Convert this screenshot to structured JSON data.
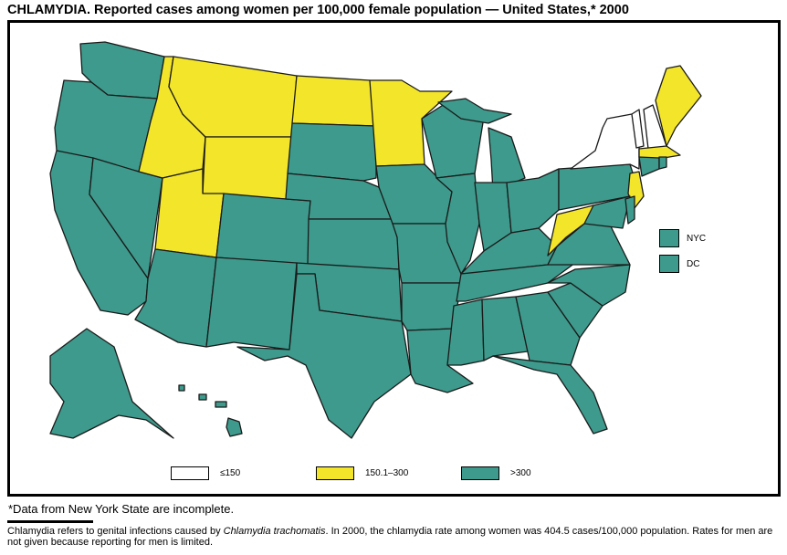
{
  "title": "CHLAMYDIA. Reported cases among women per 100,000 female population — United States,* 2000",
  "colors": {
    "low": "#ffffff",
    "mid": "#f3e52a",
    "high": "#3d9a8c",
    "outline": "#1a1a1a"
  },
  "legend": [
    {
      "key": "low",
      "label": "≤150"
    },
    {
      "key": "mid",
      "label": "150.1–300"
    },
    {
      "key": "high",
      "label": ">300"
    }
  ],
  "insets": [
    {
      "label": "NYC",
      "category": "high"
    },
    {
      "label": "DC",
      "category": "high"
    }
  ],
  "states": {
    "WA": "high",
    "OR": "high",
    "CA": "high",
    "NV": "high",
    "ID": "mid",
    "MT": "mid",
    "WY": "mid",
    "UT": "mid",
    "CO": "high",
    "AZ": "high",
    "NM": "high",
    "ND": "mid",
    "SD": "high",
    "NE": "high",
    "KS": "high",
    "OK": "high",
    "TX": "high",
    "MN": "mid",
    "IA": "high",
    "MO": "high",
    "AR": "high",
    "LA": "high",
    "WI": "high",
    "IL": "high",
    "MI": "high",
    "IN": "high",
    "OH": "high",
    "KY": "high",
    "TN": "high",
    "MS": "high",
    "AL": "high",
    "GA": "high",
    "FL": "high",
    "SC": "high",
    "NC": "high",
    "VA": "high",
    "WV": "mid",
    "PA": "high",
    "NY": "low",
    "VT": "low",
    "NH": "low",
    "ME": "mid",
    "MA": "mid",
    "CT": "high",
    "RI": "high",
    "NJ": "mid",
    "DE": "high",
    "MD": "high",
    "AK": "high",
    "HI": "high"
  },
  "footnote": "*Data from New York State are incomplete.",
  "description_parts": [
    "Chlamydia refers to genital infections caused by ",
    "Chlamydia trachomatis",
    ". In 2000, the chlamydia rate among women was 404.5 cases/100,000 population. Rates for men are not given because reporting for men is limited."
  ]
}
